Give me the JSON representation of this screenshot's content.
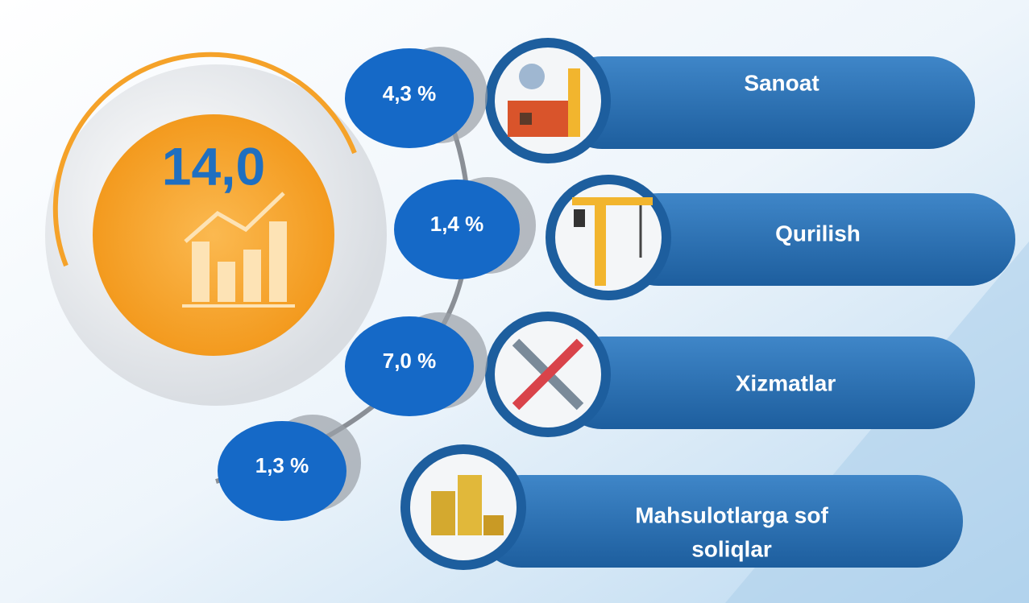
{
  "total": "14,0",
  "items": [
    {
      "label": [
        "Sanoat"
      ],
      "share": "4,3 %"
    },
    {
      "label": [
        "Qurilish"
      ],
      "share": "1,4 %"
    },
    {
      "label": [
        "Xizmatlar"
      ],
      "share": "7,0 %"
    },
    {
      "label": [
        "Mahsulotlarga sof",
        "soliqlar"
      ],
      "share": "1,3 %"
    }
  ]
}
